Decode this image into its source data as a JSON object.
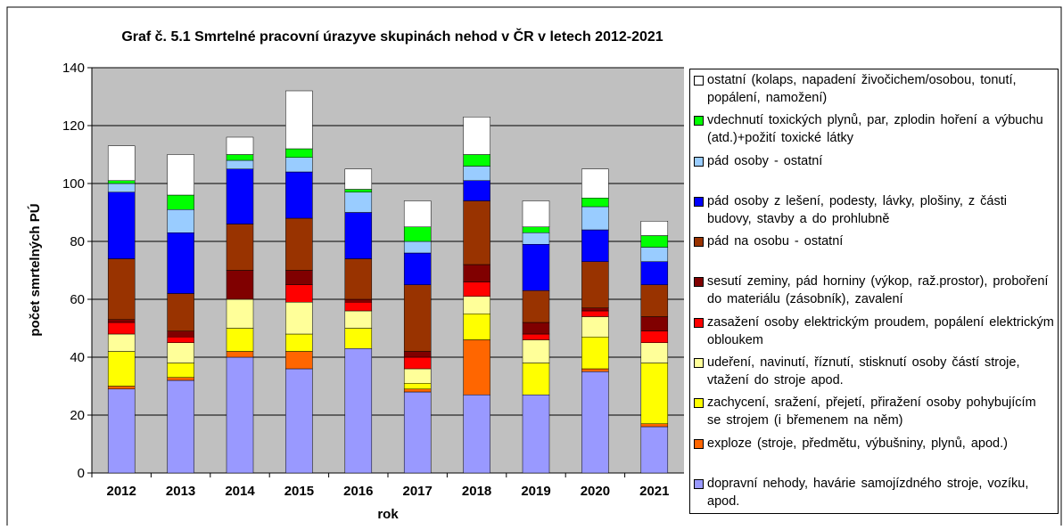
{
  "chart_data": {
    "type": "stacked_bar",
    "title": "Graf č. 5.1 Smrtelné pracovní úrazyve skupinách nehod v ČR v letech 2012-2021",
    "y_label": "počet smrtelných PÚ",
    "x_label": "rok",
    "categories": [
      "2012",
      "2013",
      "2014",
      "2015",
      "2016",
      "2017",
      "2018",
      "2019",
      "2020",
      "2021"
    ],
    "ylim": [
      0,
      140
    ],
    "yticks": [
      0,
      20,
      40,
      60,
      80,
      100,
      120,
      140
    ],
    "series": [
      {
        "name": "dopravní nehody, havárie samojízdného stroje, vozíku, apod.",
        "color": "#9999ff",
        "values": [
          29,
          32,
          40,
          36,
          43,
          28,
          27,
          27,
          35,
          16
        ]
      },
      {
        "name": "exploze (stroje, předmětu, výbušniny, plynů, apod.)",
        "color": "#ff6600",
        "values": [
          1,
          1,
          2,
          6,
          0,
          1,
          19,
          0,
          1,
          1
        ]
      },
      {
        "name": "zachycení, sražení, přejetí, přiražení osoby pohybujícím se strojem (i břemenem na něm)",
        "color": "#ffff00",
        "values": [
          12,
          5,
          8,
          6,
          7,
          2,
          9,
          11,
          11,
          21
        ]
      },
      {
        "name": "udeření, navinutí, říznutí, stisknutí osoby částí stroje, vtažení do stroje apod.",
        "color": "#ffff99",
        "values": [
          6,
          7,
          10,
          11,
          6,
          5,
          6,
          8,
          7,
          7
        ]
      },
      {
        "name": "zasažení osoby elektrickým proudem, popálení elektrickým obloukem",
        "color": "#ff0000",
        "values": [
          4,
          2,
          0,
          6,
          3,
          4,
          5,
          2,
          2,
          4
        ]
      },
      {
        "name": "sesutí zeminy, pád horniny (výkop, raž.prostor), proboření do materiálu (zásobník), zavalení",
        "color": "#800000",
        "values": [
          1,
          2,
          10,
          5,
          1,
          2,
          6,
          4,
          1,
          5
        ]
      },
      {
        "name": "pád na osobu - ostatní",
        "color": "#993300",
        "values": [
          21,
          13,
          16,
          18,
          14,
          23,
          22,
          11,
          16,
          11
        ]
      },
      {
        "name": "pád osoby z lešení, podesty, lávky, plošiny, z části budovy, stavby a do prohlubně",
        "color": "#0000ff",
        "values": [
          23,
          21,
          19,
          16,
          16,
          11,
          7,
          16,
          11,
          8
        ]
      },
      {
        "name": "pád osoby - ostatní",
        "color": "#99ccff",
        "values": [
          3,
          8,
          3,
          5,
          7,
          4,
          5,
          4,
          8,
          5
        ]
      },
      {
        "name": "vdechnutí toxických plynů, par, zplodin hoření a výbuchu (atd.)+požití toxické látky",
        "color": "#00ff00",
        "values": [
          1,
          5,
          2,
          3,
          1,
          5,
          4,
          2,
          3,
          4
        ]
      },
      {
        "name": "ostatní (kolaps, napadení živočichem/osobou, tonutí, popálení, namožení)",
        "color": "#ffffff",
        "values": [
          12,
          14,
          6,
          20,
          7,
          9,
          13,
          9,
          10,
          5
        ]
      }
    ]
  }
}
